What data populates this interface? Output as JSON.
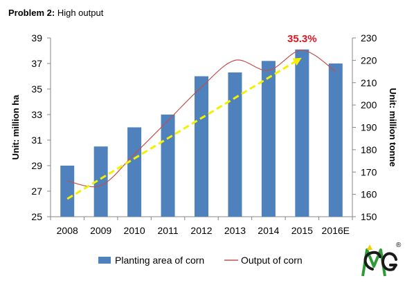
{
  "header": {
    "problem_label": "Problem 2:",
    "title_text": "High output"
  },
  "logo": {
    "registered_mark": "®"
  },
  "chart_data": {
    "type": "bar",
    "categories": [
      "2008",
      "2009",
      "2010",
      "2011",
      "2012",
      "2013",
      "2014",
      "2015",
      "2016E"
    ],
    "series": [
      {
        "name": "Planting area of corn",
        "type": "bar",
        "axis": "left",
        "color": "#4f81bd",
        "values": [
          29.0,
          30.5,
          32.0,
          33.0,
          36.0,
          36.3,
          37.2,
          38.1,
          37.0
        ]
      },
      {
        "name": "Output of corn",
        "type": "line",
        "axis": "right",
        "color": "#c0504d",
        "values": [
          166.0,
          164.0,
          178.0,
          193.0,
          208.0,
          220.0,
          215.5,
          224.5,
          215.0
        ]
      }
    ],
    "trend_arrow": {
      "color": "#f4f000",
      "from_category": "2008",
      "to_category": "2015"
    },
    "annotation": {
      "text": "35.3%",
      "color": "#e0141e",
      "category": "2015"
    },
    "ylabel": "Unit: million ha",
    "y2label": "Unit: million tonne",
    "ylim": [
      25,
      39
    ],
    "yticks": [
      25,
      27,
      29,
      31,
      33,
      35,
      37,
      39
    ],
    "y2lim": [
      150,
      230
    ],
    "y2ticks": [
      150,
      160,
      170,
      180,
      190,
      200,
      210,
      220,
      230
    ],
    "grid": false,
    "legend_position": "bottom"
  }
}
